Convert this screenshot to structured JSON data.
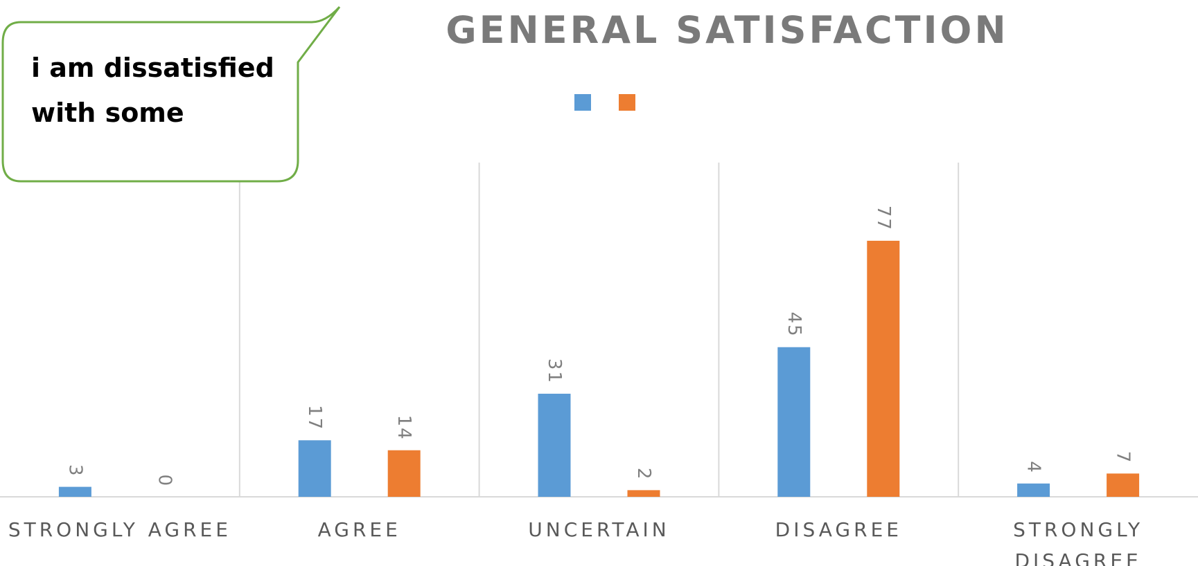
{
  "chart_data": {
    "type": "bar",
    "title": "GENERAL SATISFACTION",
    "categories": [
      [
        "STRONGLY AGREE"
      ],
      [
        "AGREE"
      ],
      [
        "UNCERTAIN"
      ],
      [
        "DISAGREE"
      ],
      [
        "STRONGLY",
        "DISAGREE"
      ]
    ],
    "series": [
      {
        "values": [
          3,
          17,
          31,
          45,
          4
        ],
        "color": "#5b9bd5"
      },
      {
        "values": [
          0,
          14,
          2,
          77,
          7
        ],
        "color": "#ed7d31"
      }
    ],
    "ylim": [
      0,
      100
    ],
    "grid": "vertical category separators",
    "legend": "top-center, swatches only",
    "data_labels": true
  },
  "callout": {
    "lines": [
      "i am dissatisfied",
      "with some"
    ],
    "border_color": "#70ad47"
  },
  "colors": {
    "gridline": "#d9d9d9",
    "title": "#7a7a7a"
  }
}
